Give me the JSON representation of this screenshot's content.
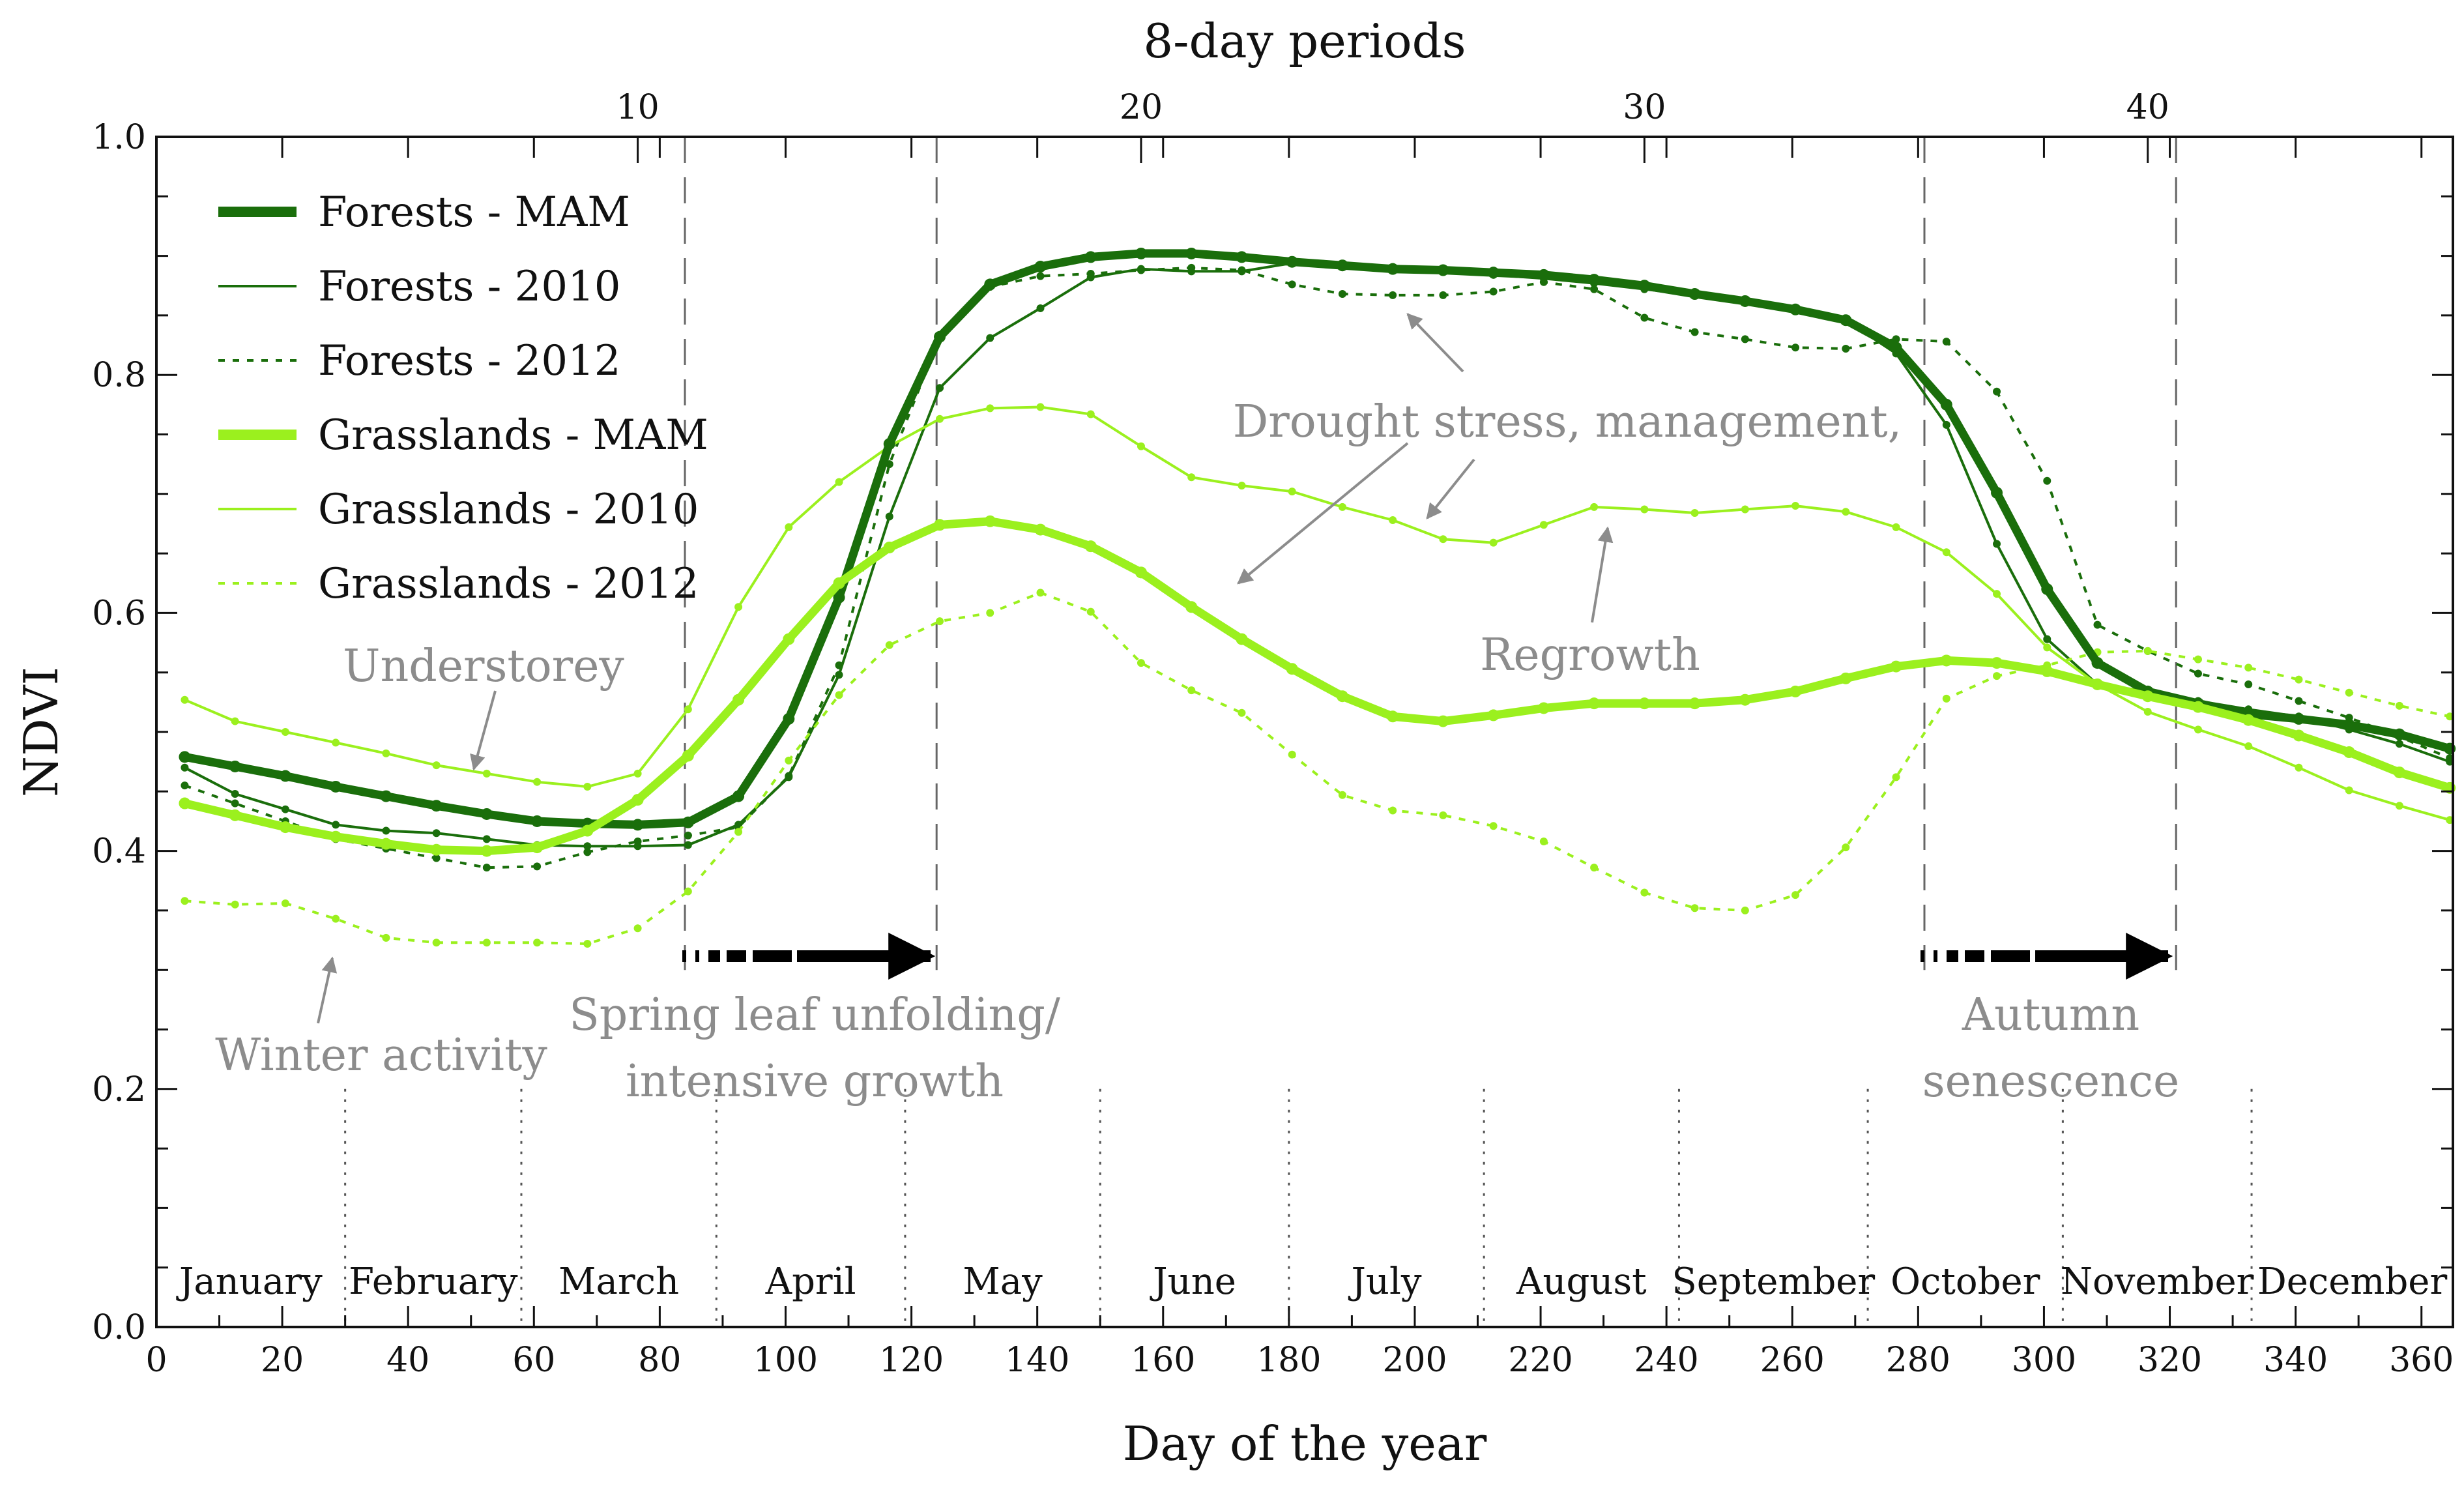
{
  "chart_data": {
    "type": "line",
    "xlabel": "Day of the year",
    "ylabel": "NDVI",
    "top_axis_label": "8-day periods",
    "xlim": [
      0,
      365
    ],
    "ylim": [
      0.0,
      1.0
    ],
    "x_ticks": [
      0,
      20,
      40,
      60,
      80,
      100,
      120,
      140,
      160,
      180,
      200,
      220,
      240,
      260,
      280,
      300,
      320,
      340,
      360
    ],
    "x_tick_labels": [
      "0",
      "20",
      "40",
      "60",
      "80",
      "100",
      "120",
      "140",
      "160",
      "180",
      "200",
      "220",
      "240",
      "260",
      "280",
      "300",
      "320",
      "340",
      "360"
    ],
    "y_ticks": [
      0.0,
      0.2,
      0.4,
      0.6,
      0.8,
      1.0
    ],
    "y_tick_labels": [
      "0.0",
      "0.2",
      "0.4",
      "0.6",
      "0.8",
      "1.0"
    ],
    "top_ticks_period": [
      10,
      20,
      30,
      40
    ],
    "top_tick_labels": [
      "10",
      "20",
      "30",
      "40"
    ],
    "x": [
      4.5,
      12.5,
      20.5,
      28.5,
      36.5,
      44.5,
      52.5,
      60.5,
      68.5,
      76.5,
      84.5,
      92.5,
      100.5,
      108.5,
      116.5,
      124.5,
      132.5,
      140.5,
      148.5,
      156.5,
      164.5,
      172.5,
      180.5,
      188.5,
      196.5,
      204.5,
      212.5,
      220.5,
      228.5,
      236.5,
      244.5,
      252.5,
      260.5,
      268.5,
      276.5,
      284.5,
      292.5,
      300.5,
      308.5,
      316.5,
      324.5,
      332.5,
      340.5,
      348.5,
      356.5,
      364.5
    ],
    "series": [
      {
        "name": "Forests - MAM",
        "color": "#1a6e0b",
        "style": "solid-thick",
        "values": [
          0.479,
          0.471,
          0.463,
          0.454,
          0.446,
          0.438,
          0.431,
          0.425,
          0.423,
          0.422,
          0.424,
          0.446,
          0.511,
          0.613,
          0.742,
          0.832,
          0.876,
          0.891,
          0.899,
          0.902,
          0.902,
          0.899,
          0.895,
          0.892,
          0.889,
          0.888,
          0.886,
          0.884,
          0.88,
          0.875,
          0.868,
          0.862,
          0.855,
          0.846,
          0.823,
          0.775,
          0.701,
          0.62,
          0.558,
          0.534,
          0.524,
          0.515,
          0.511,
          0.506,
          0.498,
          0.486
        ]
      },
      {
        "name": "Forests - 2010",
        "color": "#1a6e0b",
        "style": "solid-thin",
        "values": [
          0.47,
          0.448,
          0.435,
          0.422,
          0.417,
          0.415,
          0.41,
          0.405,
          0.404,
          0.404,
          0.405,
          0.422,
          0.462,
          0.548,
          0.681,
          0.789,
          0.831,
          0.856,
          0.882,
          0.889,
          0.887,
          0.887,
          0.894,
          0.892,
          0.889,
          0.887,
          0.884,
          0.881,
          0.877,
          0.872,
          0.867,
          0.862,
          0.855,
          0.846,
          0.818,
          0.758,
          0.658,
          0.578,
          0.54,
          0.534,
          0.526,
          0.519,
          0.513,
          0.502,
          0.49,
          0.475
        ]
      },
      {
        "name": "Forests - 2012",
        "color": "#1a6e0b",
        "style": "dotted",
        "values": [
          0.455,
          0.44,
          0.425,
          0.41,
          0.402,
          0.394,
          0.386,
          0.387,
          0.399,
          0.408,
          0.413,
          0.42,
          0.463,
          0.556,
          0.725,
          0.832,
          0.874,
          0.883,
          0.885,
          0.888,
          0.89,
          0.888,
          0.876,
          0.868,
          0.867,
          0.867,
          0.87,
          0.878,
          0.872,
          0.848,
          0.836,
          0.83,
          0.823,
          0.822,
          0.83,
          0.828,
          0.786,
          0.711,
          0.59,
          0.568,
          0.549,
          0.54,
          0.526,
          0.512,
          0.496,
          0.478
        ]
      },
      {
        "name": "Grasslands - MAM",
        "color": "#9bf01e",
        "style": "solid-thick",
        "values": [
          0.44,
          0.43,
          0.42,
          0.412,
          0.406,
          0.401,
          0.4,
          0.403,
          0.417,
          0.443,
          0.48,
          0.527,
          0.578,
          0.625,
          0.655,
          0.674,
          0.677,
          0.67,
          0.656,
          0.634,
          0.605,
          0.578,
          0.553,
          0.53,
          0.513,
          0.509,
          0.514,
          0.52,
          0.524,
          0.524,
          0.524,
          0.527,
          0.534,
          0.545,
          0.555,
          0.56,
          0.558,
          0.551,
          0.54,
          0.53,
          0.521,
          0.51,
          0.497,
          0.483,
          0.466,
          0.453
        ]
      },
      {
        "name": "Grasslands - 2010",
        "color": "#9bf01e",
        "style": "solid-thin",
        "values": [
          0.527,
          0.509,
          0.5,
          0.491,
          0.482,
          0.472,
          0.465,
          0.458,
          0.454,
          0.465,
          0.519,
          0.605,
          0.672,
          0.71,
          0.74,
          0.763,
          0.772,
          0.773,
          0.767,
          0.74,
          0.714,
          0.707,
          0.702,
          0.689,
          0.678,
          0.662,
          0.659,
          0.674,
          0.689,
          0.687,
          0.684,
          0.687,
          0.69,
          0.685,
          0.672,
          0.651,
          0.616,
          0.571,
          0.54,
          0.517,
          0.502,
          0.488,
          0.47,
          0.451,
          0.438,
          0.426
        ]
      },
      {
        "name": "Grasslands - 2012",
        "color": "#9bf01e",
        "style": "dotted",
        "values": [
          0.358,
          0.355,
          0.356,
          0.343,
          0.327,
          0.323,
          0.323,
          0.323,
          0.322,
          0.335,
          0.366,
          0.416,
          0.476,
          0.531,
          0.573,
          0.593,
          0.6,
          0.617,
          0.601,
          0.558,
          0.535,
          0.516,
          0.481,
          0.447,
          0.434,
          0.43,
          0.421,
          0.408,
          0.386,
          0.365,
          0.352,
          0.35,
          0.363,
          0.403,
          0.462,
          0.528,
          0.547,
          0.556,
          0.567,
          0.568,
          0.561,
          0.554,
          0.544,
          0.533,
          0.522,
          0.513
        ]
      }
    ],
    "vertical_markers_days": [
      84,
      124,
      281,
      321
    ],
    "month_boundaries_days": [
      30,
      58,
      89,
      119,
      150,
      180,
      211,
      242,
      272,
      303,
      333
    ],
    "months": [
      "January",
      "February",
      "March",
      "April",
      "May",
      "June",
      "July",
      "August",
      "September",
      "October",
      "November",
      "December"
    ],
    "annotations": [
      {
        "text": "Understorey"
      },
      {
        "text": "Winter activity"
      },
      {
        "text": "Spring leaf unfolding/"
      },
      {
        "text": "intensive growth"
      },
      {
        "text": "Drought stress, management,"
      },
      {
        "text": "Regrowth"
      },
      {
        "text": "Autumn"
      },
      {
        "text": "senescence"
      }
    ],
    "legend_position": "top-left"
  }
}
